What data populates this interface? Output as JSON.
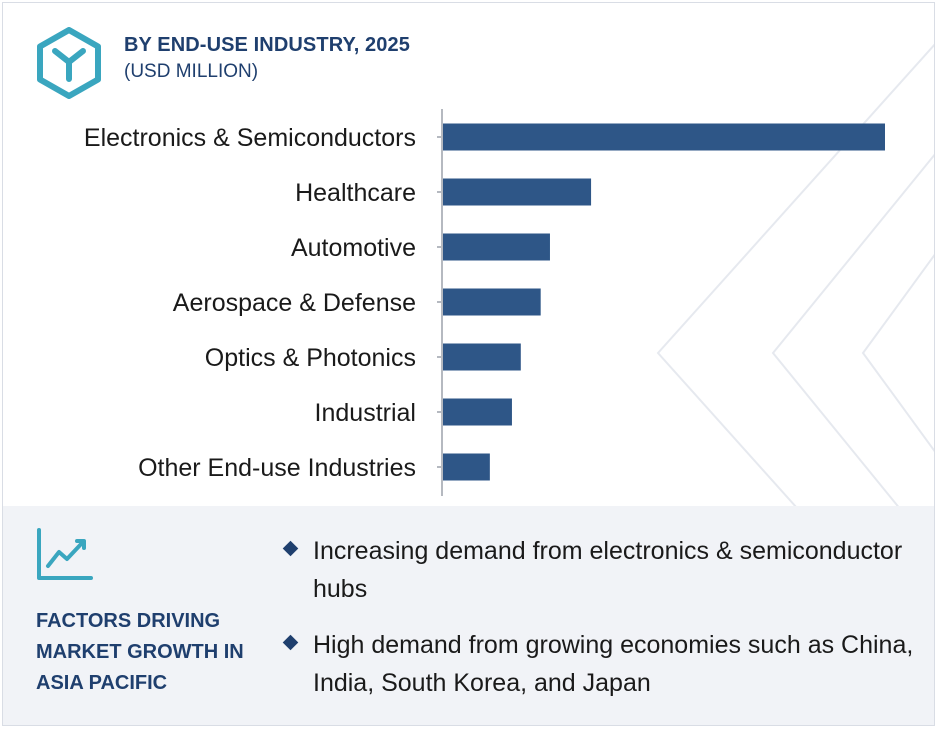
{
  "header": {
    "title": "BY END-USE INDUSTRY, 2025",
    "subtitle": "(USD MILLION)",
    "logo_icon": "hexagon-y-logo-icon"
  },
  "colors": {
    "bar": "#2e5687",
    "title": "#1f3f6e",
    "logo": "#3aa6bf",
    "panel_bg": "#f1f3f7",
    "axis": "#b5b9c0"
  },
  "chart_data": {
    "type": "bar",
    "orientation": "horizontal",
    "title": "BY END-USE INDUSTRY, 2025",
    "subtitle": "(USD MILLION)",
    "categories": [
      "Electronics & Semiconductors",
      "Healthcare",
      "Automotive",
      "Aerospace & Defense",
      "Optics & Photonics",
      "Industrial",
      "Other End-use Industries"
    ],
    "values": [
      100,
      33.5,
      24.2,
      22.1,
      17.6,
      15.6,
      10.6
    ],
    "value_axis_labels_shown": false,
    "xlim": [
      0,
      100
    ],
    "grid": false,
    "legend": "none"
  },
  "factors": {
    "icon": "line-chart-icon",
    "heading": "FACTORS DRIVING MARKET GROWTH IN ASIA PACIFIC",
    "bullets": [
      "Increasing demand from electronics & semiconductor hubs",
      "High demand from growing economies such as China, India, South Korea, and Japan"
    ]
  }
}
